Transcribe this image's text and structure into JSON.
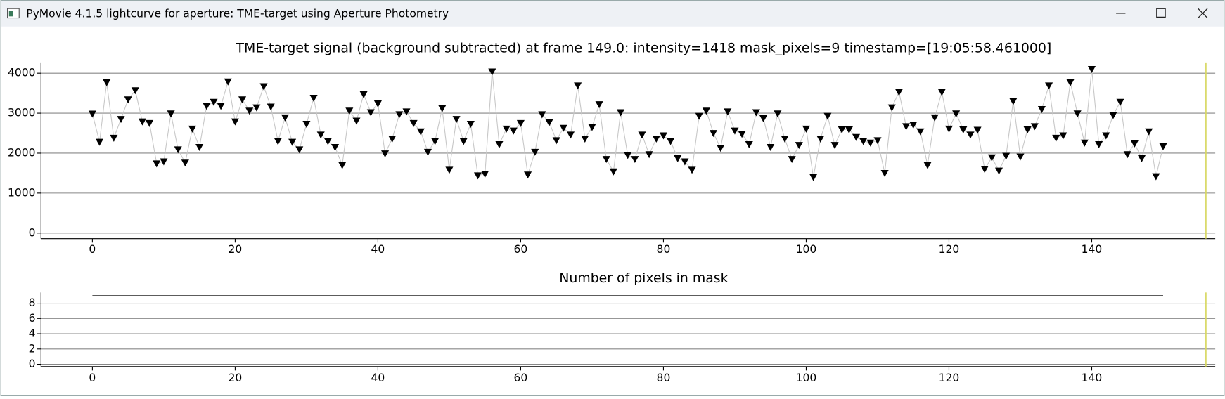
{
  "window": {
    "title": "PyMovie 4.1.5 lightcurve for aperture: TME-target using Aperture Photometry"
  },
  "chart_data": [
    {
      "type": "line",
      "title": "TME-target signal (background subtracted) at frame 149.0: intensity=1418 mask_pixels=9 timestamp=[19:05:58.461000]",
      "x": [
        0,
        1,
        2,
        3,
        4,
        5,
        6,
        7,
        8,
        9,
        10,
        11,
        12,
        13,
        14,
        15,
        16,
        17,
        18,
        19,
        20,
        21,
        22,
        23,
        24,
        25,
        26,
        27,
        28,
        29,
        30,
        31,
        32,
        33,
        34,
        35,
        36,
        37,
        38,
        39,
        40,
        41,
        42,
        43,
        44,
        45,
        46,
        47,
        48,
        49,
        50,
        51,
        52,
        53,
        54,
        55,
        56,
        57,
        58,
        59,
        60,
        61,
        62,
        63,
        64,
        65,
        66,
        67,
        68,
        69,
        70,
        71,
        72,
        73,
        74,
        75,
        76,
        77,
        78,
        79,
        80,
        81,
        82,
        83,
        84,
        85,
        86,
        87,
        88,
        89,
        90,
        91,
        92,
        93,
        94,
        95,
        96,
        97,
        98,
        99,
        100,
        101,
        102,
        103,
        104,
        105,
        106,
        107,
        108,
        109,
        110,
        111,
        112,
        113,
        114,
        115,
        116,
        117,
        118,
        119,
        120,
        121,
        122,
        123,
        124,
        125,
        126,
        127,
        128,
        129,
        130,
        131,
        132,
        133,
        134,
        135,
        136,
        137,
        138,
        139,
        140,
        141,
        142,
        143,
        144,
        145,
        146,
        147,
        148,
        149,
        150
      ],
      "series": [
        {
          "color": "#c8c8c8",
          "marker": "triangle-down",
          "marker_color": "#000000",
          "values": [
            2985,
            2280,
            3770,
            2380,
            2850,
            3340,
            3570,
            2790,
            2750,
            1740,
            1790,
            2990,
            2090,
            1760,
            2610,
            2150,
            3180,
            3280,
            3180,
            3790,
            2790,
            3340,
            3060,
            3140,
            3670,
            3160,
            2300,
            2890,
            2280,
            2090,
            2730,
            3380,
            2460,
            2300,
            2150,
            1700,
            3060,
            2810,
            3470,
            3020,
            3240,
            1990,
            2360,
            2970,
            3040,
            2750,
            2540,
            2030,
            2300,
            3120,
            1580,
            2850,
            2300,
            2730,
            1440,
            1480,
            4040,
            2220,
            2610,
            2560,
            2750,
            1460,
            2030,
            2970,
            2770,
            2320,
            2630,
            2460,
            3690,
            2360,
            2650,
            3220,
            1850,
            1540,
            3020,
            1950,
            1850,
            2460,
            1970,
            2360,
            2440,
            2300,
            1870,
            1790,
            1580,
            2930,
            3060,
            2500,
            2130,
            3040,
            2560,
            2480,
            2220,
            3020,
            2870,
            2150,
            2990,
            2360,
            1850,
            2200,
            2610,
            1400,
            2360,
            2930,
            2200,
            2590,
            2590,
            2400,
            2300,
            2260,
            2320,
            1500,
            3140,
            3530,
            2670,
            2710,
            2540,
            1700,
            2890,
            3530,
            2610,
            2990,
            2590,
            2460,
            2580,
            1600,
            1890,
            1560,
            1930,
            3300,
            1910,
            2590,
            2670,
            3100,
            3690,
            2380,
            2440,
            3770,
            2990,
            2260,
            4100,
            2220,
            2440,
            2950,
            3280,
            1970,
            2240,
            1870,
            2540,
            1418,
            2170
          ]
        }
      ],
      "xlim": [
        -7.2,
        157.3
      ],
      "xticks": [
        0,
        20,
        40,
        60,
        80,
        100,
        120,
        140
      ],
      "ylim": [
        -140,
        4270
      ],
      "yticks": [
        0,
        1000,
        2000,
        3000,
        4000
      ],
      "grid": true,
      "cursor": 156,
      "cursor_color": "#d8d860"
    },
    {
      "type": "line",
      "title": "Number of pixels in mask",
      "x": [
        0,
        1,
        2,
        3,
        4,
        5,
        6,
        7,
        8,
        9,
        10,
        11,
        12,
        13,
        14,
        15,
        16,
        17,
        18,
        19,
        20,
        21,
        22,
        23,
        24,
        25,
        26,
        27,
        28,
        29,
        30,
        31,
        32,
        33,
        34,
        35,
        36,
        37,
        38,
        39,
        40,
        41,
        42,
        43,
        44,
        45,
        46,
        47,
        48,
        49,
        50,
        51,
        52,
        53,
        54,
        55,
        56,
        57,
        58,
        59,
        60,
        61,
        62,
        63,
        64,
        65,
        66,
        67,
        68,
        69,
        70,
        71,
        72,
        73,
        74,
        75,
        76,
        77,
        78,
        79,
        80,
        81,
        82,
        83,
        84,
        85,
        86,
        87,
        88,
        89,
        90,
        91,
        92,
        93,
        94,
        95,
        96,
        97,
        98,
        99,
        100,
        101,
        102,
        103,
        104,
        105,
        106,
        107,
        108,
        109,
        110,
        111,
        112,
        113,
        114,
        115,
        116,
        117,
        118,
        119,
        120,
        121,
        122,
        123,
        124,
        125,
        126,
        127,
        128,
        129,
        130,
        131,
        132,
        133,
        134,
        135,
        136,
        137,
        138,
        139,
        140,
        141,
        142,
        143,
        144,
        145,
        146,
        147,
        148,
        149,
        150
      ],
      "series": [
        {
          "color": "#444444",
          "marker": "none",
          "values": [
            9,
            9,
            9,
            9,
            9,
            9,
            9,
            9,
            9,
            9,
            9,
            9,
            9,
            9,
            9,
            9,
            9,
            9,
            9,
            9,
            9,
            9,
            9,
            9,
            9,
            9,
            9,
            9,
            9,
            9,
            9,
            9,
            9,
            9,
            9,
            9,
            9,
            9,
            9,
            9,
            9,
            9,
            9,
            9,
            9,
            9,
            9,
            9,
            9,
            9,
            9,
            9,
            9,
            9,
            9,
            9,
            9,
            9,
            9,
            9,
            9,
            9,
            9,
            9,
            9,
            9,
            9,
            9,
            9,
            9,
            9,
            9,
            9,
            9,
            9,
            9,
            9,
            9,
            9,
            9,
            9,
            9,
            9,
            9,
            9,
            9,
            9,
            9,
            9,
            9,
            9,
            9,
            9,
            9,
            9,
            9,
            9,
            9,
            9,
            9,
            9,
            9,
            9,
            9,
            9,
            9,
            9,
            9,
            9,
            9,
            9,
            9,
            9,
            9,
            9,
            9,
            9,
            9,
            9,
            9,
            9,
            9,
            9,
            9,
            9,
            9,
            9,
            9,
            9,
            9,
            9,
            9,
            9,
            9,
            9,
            9,
            9,
            9,
            9,
            9,
            9,
            9,
            9,
            9,
            9,
            9,
            9,
            9,
            9,
            9,
            9
          ]
        }
      ],
      "xlim": [
        -7.2,
        157.3
      ],
      "xticks": [
        0,
        20,
        40,
        60,
        80,
        100,
        120,
        140
      ],
      "ylim": [
        -0.3,
        9.4
      ],
      "yticks": [
        0,
        2,
        4,
        6,
        8
      ],
      "grid": true,
      "cursor": 156,
      "cursor_color": "#d8d860"
    }
  ]
}
